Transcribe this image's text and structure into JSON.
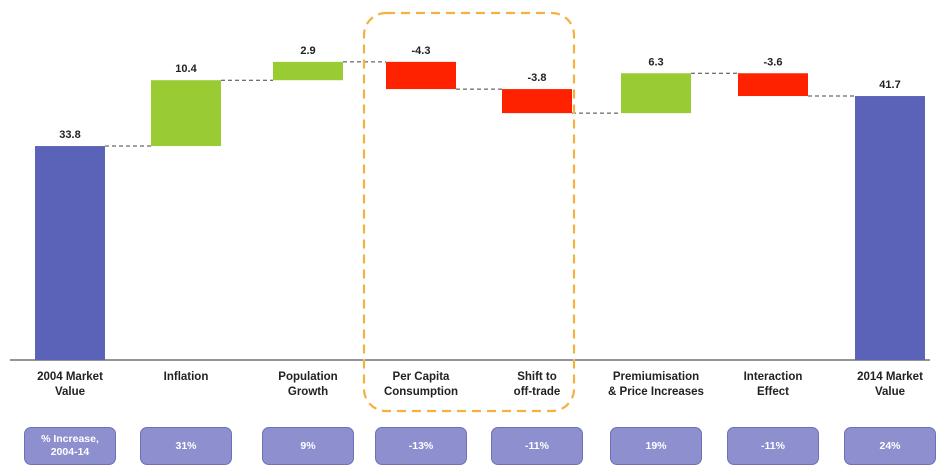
{
  "colors": {
    "total": "#5b63b8",
    "increase": "#99cc33",
    "decrease": "#ff2200",
    "highlight": "#f5b041",
    "pill": "#8e8fcf"
  },
  "chart_data": {
    "type": "bar",
    "subtype": "waterfall",
    "title": "",
    "xlabel": "",
    "ylabel": "",
    "ylim": [
      0,
      50
    ],
    "grid": false,
    "legend": "none",
    "categories": [
      "2004 Market\nValue",
      "Inflation",
      "Population\nGrowth",
      "Per Capita\nConsumption",
      "Shift to\noff-trade",
      "Premiumisation\n& Price Increases",
      "Interaction\nEffect",
      "2014 Market\nValue"
    ],
    "values": [
      33.8,
      10.4,
      2.9,
      -4.3,
      -3.8,
      6.3,
      -3.6,
      41.7
    ],
    "value_labels": [
      "33.8",
      "10.4",
      "2.9",
      "-4.3",
      "-3.8",
      "6.3",
      "-3.6",
      "41.7"
    ],
    "kinds": [
      "total",
      "delta",
      "delta",
      "delta",
      "delta",
      "delta",
      "delta",
      "total"
    ],
    "highlighted_categories": [
      "Per Capita\nConsumption",
      "Shift to\noff-trade"
    ],
    "pct_row": [
      "% Increase,\n2004-14",
      "31%",
      "9%",
      "-13%",
      "-11%",
      "19%",
      "-11%",
      "24%"
    ]
  }
}
